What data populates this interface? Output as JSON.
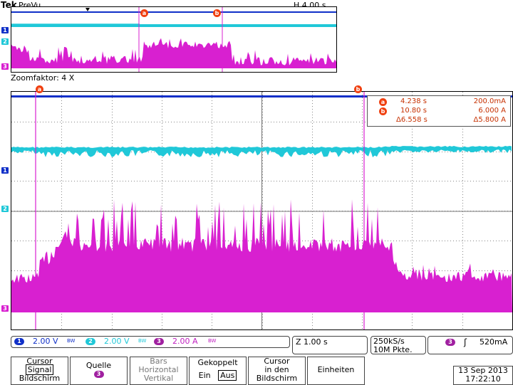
{
  "header": {
    "brand": "Tek",
    "mode": "PreVu",
    "horizontal": "H 4.00 s"
  },
  "zoom": {
    "label": "Zoomfaktor: 4 X"
  },
  "channels": [
    {
      "id": "1",
      "color": "#1030c8"
    },
    {
      "id": "2",
      "color": "#20c8d8"
    },
    {
      "id": "3",
      "color": "#d820d0"
    }
  ],
  "cursors": {
    "a": "a",
    "b": "b"
  },
  "readout": {
    "a_time": "4.238 s",
    "a_value": "200.0mA",
    "b_time": "10.80 s",
    "b_value": "6.000 A",
    "delta_time": "Δ6.558 s",
    "delta_value": "Δ5.800 A"
  },
  "status": {
    "ch1_scale": "2.00 V",
    "ch2_scale": "2.00 V",
    "ch3_scale": "2.00 A",
    "bw": "BW",
    "zoom_time": "Z 1.00 s",
    "sample_rate": "250kS/s",
    "record_length": "10M Pkte.",
    "trigger_level": "520mA"
  },
  "menu": {
    "cursor_l1": "Cursor",
    "cursor_l2": "Signal",
    "cursor_l3": "Bildschirm",
    "source_l1": "Quelle",
    "source_chip": "3",
    "bars_l1": "Bars",
    "bars_l2": "Horizontal",
    "bars_l3": "Vertikal",
    "coupled_l1": "Gekoppelt",
    "coupled_on": "Ein",
    "coupled_off": "Aus",
    "cursor_screen_l1": "Cursor",
    "cursor_screen_l2": "in den",
    "cursor_screen_l3": "Bildschirm",
    "units": "Einheiten"
  },
  "datetime": {
    "date": "13 Sep  2013",
    "time": "17:22:10"
  }
}
